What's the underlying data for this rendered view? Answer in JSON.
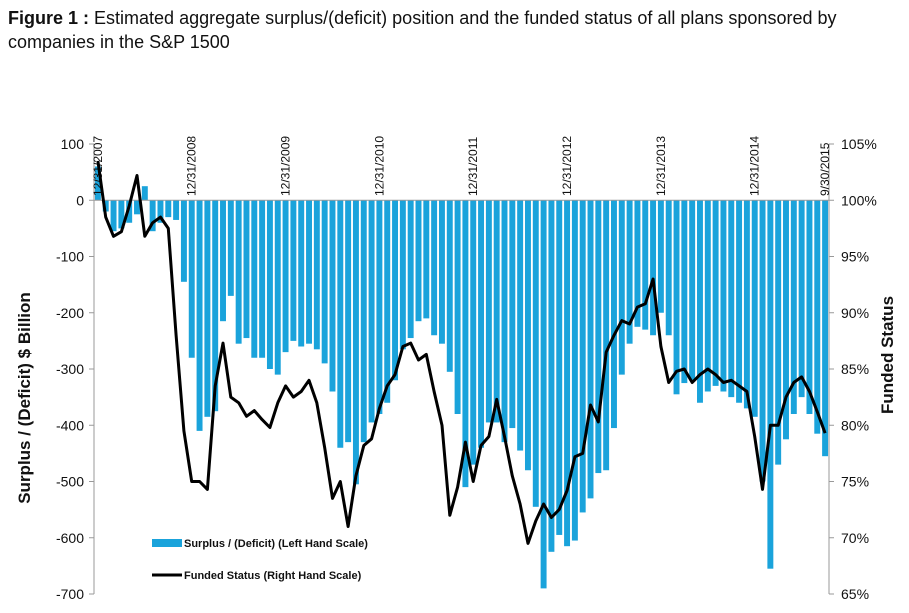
{
  "title": {
    "prefix": "Figure 1 :",
    "text": "Estimated aggregate surplus/(deficit) position and the funded status of all plans sponsored by companies in the S&P 1500"
  },
  "chart_data": {
    "type": "bar",
    "title": "Figure 1 : Estimated aggregate surplus/(deficit) position and the funded status of all plans sponsored by companies in the S&P 1500",
    "ylabel_left": "Surplus / (Deficit) $ Billion",
    "ylabel_right": "Funded Status",
    "ylim_left": [
      -700,
      100
    ],
    "ylim_right": [
      65,
      105
    ],
    "left_ticks": [
      "100",
      "0",
      "-100",
      "-200",
      "-300",
      "-400",
      "-500",
      "-600",
      "-700"
    ],
    "right_ticks": [
      "105%",
      "100%",
      "95%",
      "90%",
      "85%",
      "80%",
      "75%",
      "70%",
      "65%"
    ],
    "date_markers": [
      {
        "label": "12/31/2007",
        "index": 0
      },
      {
        "label": "12/31/2008",
        "index": 12
      },
      {
        "label": "12/31/2009",
        "index": 24
      },
      {
        "label": "12/31/2010",
        "index": 36
      },
      {
        "label": "12/31/2011",
        "index": 48
      },
      {
        "label": "12/31/2012",
        "index": 60
      },
      {
        "label": "12/31/2013",
        "index": 72
      },
      {
        "label": "12/31/2014",
        "index": 84
      },
      {
        "label": "9/30/2015",
        "index": 93
      }
    ],
    "grid": false,
    "legend_position": "bottom-left",
    "series": [
      {
        "name": "Surplus / (Deficit) (Left Hand Scale)",
        "type": "bar",
        "axis": "left",
        "color": "#1AA3DB",
        "values": [
          60,
          -20,
          -55,
          -50,
          -40,
          -25,
          25,
          -55,
          -40,
          -30,
          -35,
          -145,
          -280,
          -410,
          -385,
          -375,
          -215,
          -170,
          -255,
          -245,
          -280,
          -280,
          -300,
          -310,
          -270,
          -250,
          -260,
          -255,
          -265,
          -290,
          -340,
          -440,
          -430,
          -505,
          -430,
          -395,
          -380,
          -360,
          -320,
          -265,
          -245,
          -215,
          -210,
          -240,
          -255,
          -305,
          -380,
          -510,
          -470,
          -440,
          -395,
          -395,
          -430,
          -405,
          -445,
          -480,
          -545,
          -690,
          -625,
          -595,
          -615,
          -605,
          -555,
          -530,
          -485,
          -480,
          -405,
          -310,
          -255,
          -225,
          -230,
          -240,
          -200,
          -240,
          -345,
          -325,
          -320,
          -360,
          -340,
          -330,
          -340,
          -350,
          -360,
          -370,
          -385,
          -500,
          -655,
          -470,
          -425,
          -380,
          -350,
          -380,
          -415,
          -455
        ]
      },
      {
        "name": "Funded Status (Right Hand Scale)",
        "type": "line",
        "axis": "right",
        "color": "#000000",
        "values": [
          103.5,
          98.5,
          96.8,
          97.2,
          99.5,
          102.2,
          96.8,
          98.0,
          98.5,
          97.5,
          88.0,
          79.5,
          75.0,
          75.0,
          74.3,
          83.5,
          87.3,
          82.5,
          82.0,
          80.8,
          81.3,
          80.5,
          79.8,
          82.0,
          83.5,
          82.5,
          83.0,
          84.0,
          82.0,
          78.0,
          73.5,
          75.0,
          71.0,
          75.5,
          78.2,
          78.8,
          81.5,
          83.5,
          84.5,
          87.0,
          87.3,
          85.8,
          86.3,
          83.0,
          80.0,
          72.0,
          74.5,
          78.5,
          75.0,
          78.2,
          79.0,
          82.3,
          79.0,
          75.5,
          73.0,
          69.5,
          71.5,
          73.0,
          71.8,
          72.5,
          74.2,
          77.2,
          77.5,
          81.8,
          80.3,
          86.5,
          88.0,
          89.3,
          89.0,
          90.5,
          90.8,
          93.0,
          87.0,
          83.8,
          84.8,
          85.0,
          83.8,
          84.5,
          85.0,
          84.5,
          83.8,
          84.0,
          83.5,
          83.0,
          79.0,
          74.3,
          80.0,
          80.0,
          82.5,
          83.8,
          84.3,
          83.0,
          81.2,
          79.3
        ]
      }
    ],
    "legend": [
      {
        "label": "Surplus / (Deficit) (Left Hand Scale)",
        "kind": "bar"
      },
      {
        "label": "Funded Status (Right Hand Scale)",
        "kind": "line"
      }
    ]
  }
}
